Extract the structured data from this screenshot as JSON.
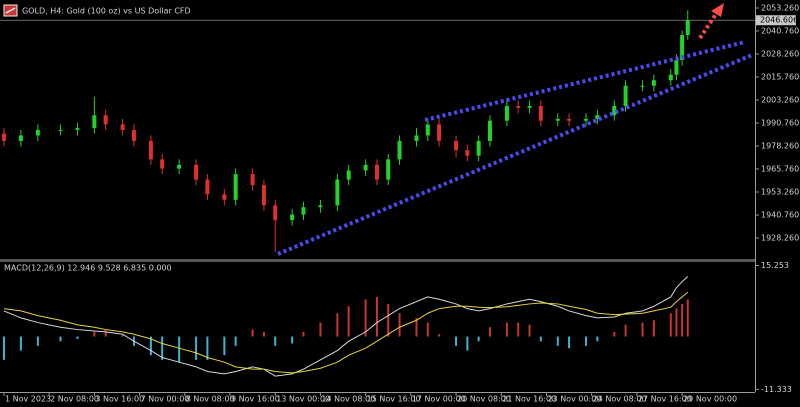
{
  "chart_data": [
    {
      "type": "candlestick",
      "title": "GOLD, H4:  Gold (100 oz) vs US Dollar CFD",
      "x": [
        0,
        3,
        6,
        10,
        13,
        16,
        18,
        21,
        23,
        26,
        28,
        31,
        34,
        36,
        39,
        41,
        44,
        46,
        48,
        51,
        53,
        56,
        59,
        61,
        64,
        66,
        68,
        70,
        73,
        75,
        77,
        80,
        82,
        84,
        86,
        89,
        91,
        93,
        95,
        98,
        100,
        103,
        105,
        108,
        110,
        113,
        115,
        118,
        119,
        120,
        121
      ],
      "open": [
        1985,
        1981,
        1984,
        1987,
        1987,
        1988,
        1995,
        1990,
        1987,
        1981,
        1971,
        1966,
        1968,
        1960,
        1952,
        1949,
        1963,
        1957,
        1946,
        1938,
        1941,
        1945,
        1946,
        1960,
        1965,
        1968,
        1960,
        1971,
        1981,
        1984,
        1990,
        1981,
        1976,
        1973,
        1981,
        1992,
        2000,
        1999,
        2000,
        1992,
        1993,
        1992,
        1993,
        1995,
        2000,
        2011,
        2011,
        2014,
        2017,
        2025,
        2038.6
      ],
      "high": [
        1988,
        1987,
        1990,
        1990,
        1991,
        2005,
        1998,
        1993,
        1990,
        1984,
        1974,
        1971,
        1971,
        1963,
        1955,
        1966,
        1966,
        1960,
        1949,
        1944,
        1948,
        1949,
        1963,
        1968,
        1971,
        1971,
        1974,
        1984,
        1988,
        1993,
        1993,
        1984,
        1979,
        1984,
        1995,
        2004,
        2003,
        2003,
        2003,
        1996,
        1996,
        1996,
        1998,
        2003,
        2014,
        2014,
        2017,
        2020,
        2028,
        2041,
        2052
      ],
      "low": [
        1978,
        1978,
        1981,
        1984,
        1984,
        1985,
        1987,
        1984,
        1978,
        1968,
        1963,
        1963,
        1957,
        1949,
        1946,
        1946,
        1954,
        1943,
        1920.6,
        1935,
        1938,
        1942,
        1943,
        1957,
        1962,
        1957,
        1957,
        1968,
        1978,
        1981,
        1978,
        1972,
        1970,
        1970,
        1978,
        1989,
        1996,
        1996,
        1989,
        1989,
        1989,
        1989,
        1990,
        1992,
        1997,
        2008,
        2008,
        2011,
        2014,
        2022,
        2036
      ],
      "close": [
        1981,
        1984,
        1987,
        1987,
        1988,
        1995,
        1990,
        1987,
        1981,
        1971,
        1966,
        1968,
        1960,
        1952,
        1949,
        1963,
        1957,
        1946,
        1938,
        1941,
        1945,
        1946,
        1960,
        1965,
        1968,
        1960,
        1971,
        1981,
        1984,
        1990,
        1981,
        1976,
        1973,
        1981,
        1992,
        2000,
        1999,
        2000,
        1992,
        1993,
        1992,
        1993,
        1995,
        2000,
        2011,
        2011,
        2014,
        2017,
        2025,
        2038.6,
        2046.6
      ],
      "color_up": "#22d32a",
      "color_down": "#e0302a",
      "xlim": [
        -0.7,
        132.9
      ],
      "xticks": [
        {
          "value": 0,
          "label": "1 Nov 2023"
        },
        {
          "value": 8,
          "label": "2 Nov 08:00"
        },
        {
          "value": 16,
          "label": "3 Nov 16:00"
        },
        {
          "value": 24,
          "label": "7 Nov 00:00"
        },
        {
          "value": 32,
          "label": "8 Nov 08:00"
        },
        {
          "value": 40,
          "label": "9 Nov 16:00"
        },
        {
          "value": 48,
          "label": "13 Nov 00:00"
        },
        {
          "value": 56,
          "label": "14 Nov 08:00"
        },
        {
          "value": 64,
          "label": "15 Nov 16:00"
        },
        {
          "value": 72,
          "label": "17 Nov 00:00"
        },
        {
          "value": 80,
          "label": "20 Nov 08:00"
        },
        {
          "value": 88,
          "label": "21 Nov 16:00"
        },
        {
          "value": 96,
          "label": "23 Nov 00:00"
        },
        {
          "value": 104,
          "label": "24 Nov 08:00"
        },
        {
          "value": 112,
          "label": "27 Nov 16:00"
        },
        {
          "value": 120,
          "label": "29 Nov 00:00"
        }
      ],
      "ylim": [
        1917.4,
        2057.6
      ],
      "yticks": [
        {
          "value": 2053.26,
          "label": "2053.260"
        },
        {
          "value": 2040.76,
          "label": "2040.760"
        },
        {
          "value": 2028.26,
          "label": "2028.260"
        },
        {
          "value": 2015.76,
          "label": "2015.760"
        },
        {
          "value": 2003.26,
          "label": "2003.260"
        },
        {
          "value": 1990.76,
          "label": "1990.760"
        },
        {
          "value": 1978.26,
          "label": "1978.260"
        },
        {
          "value": 1965.76,
          "label": "1965.760"
        },
        {
          "value": 1953.26,
          "label": "1953.260"
        },
        {
          "value": 1940.76,
          "label": "1940.760"
        },
        {
          "value": 1928.26,
          "label": "1928.260"
        }
      ],
      "last_price": 2046.606
    },
    {
      "type": "macd",
      "title": "MACD(12,26,9) 12.946 9.528 6.835 0.000",
      "ylim": [
        -11.9,
        16
      ],
      "yticks": [
        15.253,
        -11.333
      ],
      "series": [
        {
          "style": "histogram",
          "color_up": "#c8372d",
          "color_down": "#3fb4d4",
          "values": [
            -5,
            -3,
            -2,
            -1,
            -0.5,
            1,
            1.5,
            0.5,
            -2,
            -4,
            -5,
            -5.5,
            -5,
            -5,
            -4,
            -2,
            1.5,
            1,
            -2,
            -1.5,
            1,
            3,
            5,
            6.5,
            8,
            8.5,
            7,
            5,
            4,
            3,
            0.5,
            -2,
            -3,
            -1,
            2,
            3,
            3,
            2.5,
            -1,
            -2,
            -2.5,
            -2,
            -1,
            1,
            2.5,
            3,
            3.5,
            5,
            6,
            7,
            8
          ]
        },
        {
          "style": "line",
          "color": "#d8d8d8",
          "values": [
            5.5,
            4,
            3,
            2,
            1.5,
            1.2,
            1,
            0.5,
            -1,
            -3,
            -4.5,
            -5.5,
            -6.5,
            -7.5,
            -8,
            -7.5,
            -6.5,
            -7,
            -8.5,
            -8,
            -7,
            -5,
            -3,
            -1,
            1,
            3,
            4.5,
            6,
            7.5,
            8.5,
            8,
            7,
            6,
            5.5,
            6,
            7,
            7.5,
            8,
            7.5,
            6.5,
            5.5,
            4.5,
            4,
            4.2,
            5,
            5.5,
            6.5,
            8.5,
            10.5,
            11.8,
            12.9
          ]
        },
        {
          "style": "line",
          "color": "#e8d23a",
          "values": [
            6,
            5.5,
            4.5,
            3.5,
            2.5,
            2,
            1.5,
            1,
            0.5,
            -0.5,
            -1.5,
            -2.5,
            -3.5,
            -4.5,
            -5.5,
            -6.5,
            -7,
            -7,
            -7.5,
            -7.8,
            -7.5,
            -6.8,
            -5.5,
            -4,
            -2.5,
            -1,
            0.5,
            2,
            3.5,
            5,
            6,
            6.5,
            6.5,
            6.3,
            6.2,
            6.4,
            6.7,
            7,
            7.2,
            7,
            6.5,
            5.8,
            5,
            4.7,
            4.8,
            5,
            5.5,
            6.3,
            7.5,
            8.5,
            9.5
          ]
        }
      ]
    }
  ]
}
